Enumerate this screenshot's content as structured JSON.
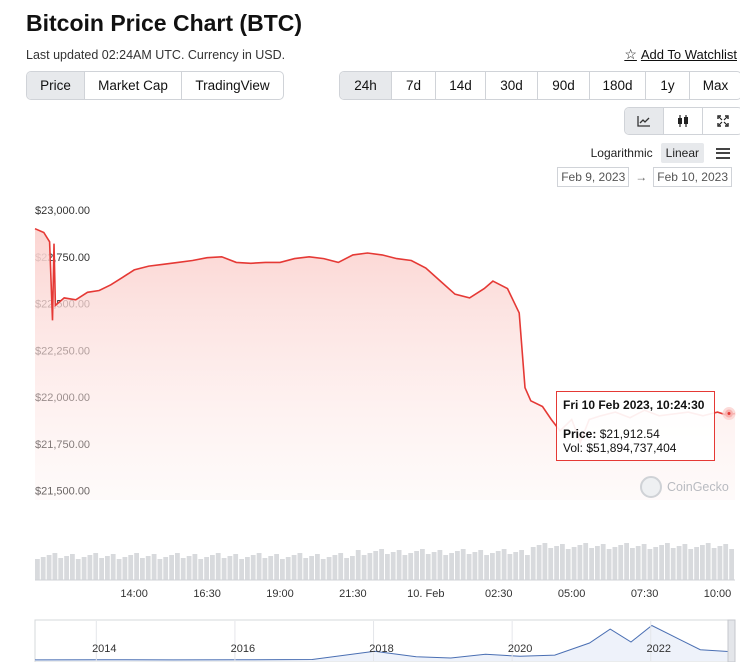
{
  "header": {
    "title": "Bitcoin Price Chart (BTC)",
    "updated": "Last updated 02:24AM UTC. Currency in USD.",
    "watchlist_label": "Add To Watchlist"
  },
  "view_tabs": [
    {
      "label": "Price",
      "active": true
    },
    {
      "label": "Market Cap",
      "active": false
    },
    {
      "label": "TradingView",
      "active": false
    }
  ],
  "range_tabs": [
    {
      "label": "24h",
      "active": true
    },
    {
      "label": "7d",
      "active": false
    },
    {
      "label": "14d",
      "active": false
    },
    {
      "label": "30d",
      "active": false
    },
    {
      "label": "90d",
      "active": false
    },
    {
      "label": "180d",
      "active": false
    },
    {
      "label": "1y",
      "active": false
    },
    {
      "label": "Max",
      "active": false
    }
  ],
  "chart_type_icons": [
    "line-chart-icon",
    "candlestick-icon",
    "fullscreen-icon"
  ],
  "scale": {
    "log_label": "Logarithmic",
    "linear_label": "Linear",
    "selected": "Linear"
  },
  "date_range": {
    "from": "Feb 9, 2023",
    "to": "Feb 10, 2023"
  },
  "tooltip": {
    "title": "Fri 10 Feb 2023, 10:24:30",
    "price_label": "Price:",
    "price_value": "$21,912.54",
    "vol_label": "Vol:",
    "vol_value": "$51,894,737,404"
  },
  "watermark": "CoinGecko",
  "colors": {
    "line": "#e53935",
    "fill": "#fde3e1",
    "volume": "#d8dadd",
    "navigator": "#4a6fb3"
  },
  "chart_data": {
    "type": "line",
    "title": "",
    "y_tick_labels": [
      "$23,000.00",
      "$22,750.00",
      "$22,500.00",
      "$22,250.00",
      "$22,000.00",
      "$21,750.00",
      "$21,500.00"
    ],
    "y_ticks": [
      23000,
      22750,
      22500,
      22250,
      22000,
      21750,
      21500
    ],
    "ylim": [
      21450,
      23000
    ],
    "x_tick_labels": [
      "14:00",
      "16:30",
      "19:00",
      "21:30",
      "10. Feb",
      "02:30",
      "05:00",
      "07:30",
      "10:00"
    ],
    "x_ticks_hours": [
      14,
      16.5,
      19,
      21.5,
      24,
      26.5,
      29,
      31.5,
      34
    ],
    "xlim_hours": [
      10.6,
      34.6
    ],
    "x_unit": "hours since 00:00 Feb 9, 2023 (UTC)",
    "series": [
      {
        "x": [
          10.6,
          10.9,
          11.1,
          11.2,
          11.25,
          11.3,
          11.6,
          12.0,
          12.4,
          12.8,
          13.2,
          13.6,
          14.0,
          14.5,
          15.0,
          15.5,
          16.0,
          16.5,
          17.0,
          17.5,
          18.0,
          18.5,
          19.0,
          19.5,
          20.0,
          20.5,
          21.0,
          21.5,
          22.0,
          22.5,
          23.0,
          23.5,
          24.0,
          24.5,
          25.0,
          25.5,
          26.0,
          26.3,
          26.8,
          27.2,
          27.4,
          27.6,
          28.0,
          28.3,
          28.6,
          29.0,
          29.3,
          29.6,
          30.0,
          30.5,
          31.0,
          31.5,
          32.0,
          32.5,
          33.0,
          33.5,
          34.0,
          34.3,
          34.6
        ],
        "y": [
          22900,
          22880,
          22830,
          22410,
          22820,
          22490,
          22530,
          22520,
          22560,
          22570,
          22600,
          22640,
          22680,
          22700,
          22710,
          22720,
          22730,
          22745,
          22750,
          22720,
          22715,
          22720,
          22720,
          22740,
          22750,
          22740,
          22720,
          22760,
          22770,
          22760,
          22740,
          22730,
          22690,
          22620,
          22550,
          22530,
          22580,
          22620,
          22580,
          22450,
          22050,
          21980,
          21950,
          21880,
          21820,
          21880,
          21760,
          21880,
          21900,
          21920,
          21890,
          21930,
          21900,
          21910,
          21920,
          21900,
          21920,
          21905,
          21912
        ]
      }
    ],
    "volume_bars": 120,
    "navigator": {
      "x_tick_labels": [
        "2014",
        "2016",
        "2018",
        "2020",
        "2022"
      ],
      "x_years": [
        2014,
        2016,
        2018,
        2020,
        2022
      ],
      "xlim_years": [
        2013,
        2023.1
      ],
      "years": [
        2013,
        2014,
        2015,
        2016,
        2017,
        2017.9,
        2018.5,
        2019,
        2019.5,
        2020,
        2020.5,
        2021,
        2021.3,
        2021.6,
        2021.9,
        2022.3,
        2022.6,
        2023,
        2023.1
      ],
      "prices": [
        100,
        600,
        250,
        430,
        1000,
        17000,
        6500,
        3800,
        11000,
        7200,
        9500,
        33000,
        60000,
        35000,
        67000,
        40000,
        20000,
        16500,
        21900
      ]
    },
    "grid": false,
    "legend": "none"
  }
}
